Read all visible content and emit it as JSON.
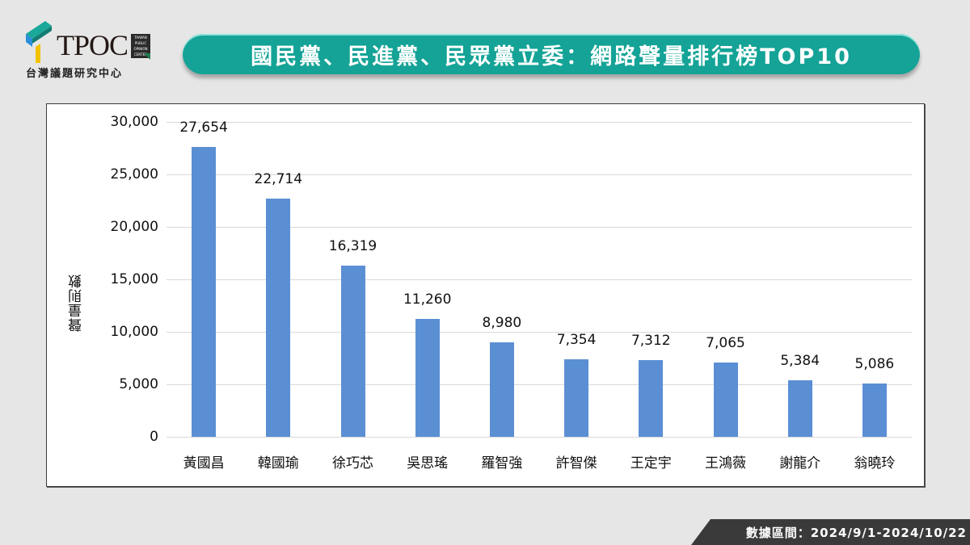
{
  "logo": {
    "brand": "TPOC",
    "badge_lines": [
      "TAIWAN",
      "PUBLIC",
      "OPINION",
      "CENTER"
    ],
    "subtitle": "台灣議題研究中心"
  },
  "header": {
    "title": "國民黨、民進黨、民眾黨立委：網路聲量排行榜TOP10"
  },
  "colors": {
    "title_bg": "#14a396",
    "bar": "#5b8fd4",
    "page_bg": "#e6e6e6",
    "footer_bg": "#3a3a3a"
  },
  "footer": {
    "date_range": "數據區間：2024/9/1-2024/10/22"
  },
  "chart_data": {
    "type": "bar",
    "title": "國民黨、民進黨、民眾黨立委：網路聲量排行榜TOP10",
    "xlabel": "",
    "ylabel": "聲量則數",
    "ylim": [
      0,
      30000
    ],
    "yticks": [
      0,
      5000,
      10000,
      15000,
      20000,
      25000,
      30000
    ],
    "ytick_labels": [
      "0",
      "5,000",
      "10,000",
      "15,000",
      "20,000",
      "25,000",
      "30,000"
    ],
    "grid": true,
    "legend": null,
    "categories": [
      "黃國昌",
      "韓國瑜",
      "徐巧芯",
      "吳思瑤",
      "羅智強",
      "許智傑",
      "王定宇",
      "王鴻薇",
      "謝龍介",
      "翁曉玲"
    ],
    "values": [
      27654,
      22714,
      16319,
      11260,
      8980,
      7354,
      7312,
      7065,
      5384,
      5086
    ],
    "value_labels": [
      "27,654",
      "22,714",
      "16,319",
      "11,260",
      "8,980",
      "7,354",
      "7,312",
      "7,065",
      "5,384",
      "5,086"
    ]
  }
}
